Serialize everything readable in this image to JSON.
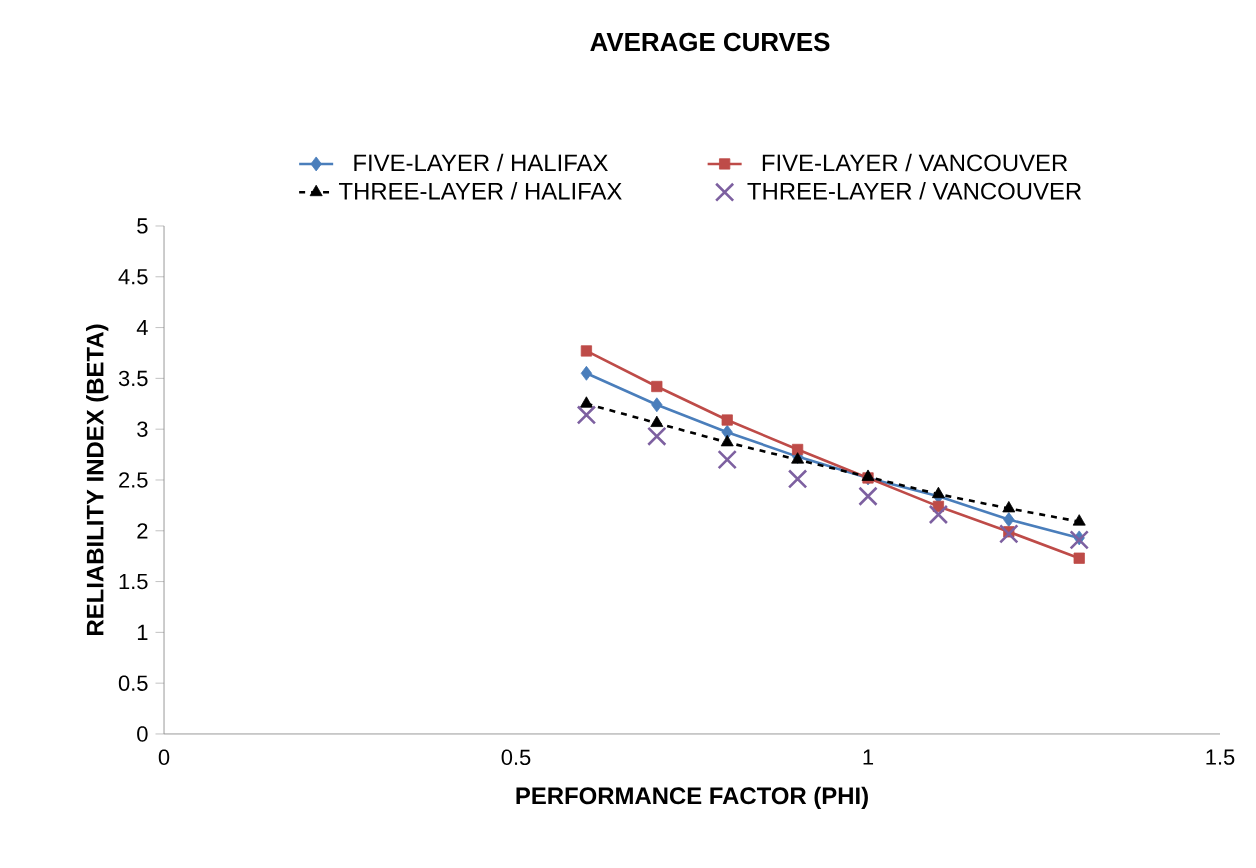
{
  "chart_data": {
    "type": "line",
    "title": "AVERAGE CURVES",
    "xlabel": "PERFORMANCE FACTOR (PHI)",
    "ylabel": "RELIABILITY INDEX (BETA)",
    "x": [
      0.6,
      0.7,
      0.8,
      0.9,
      1.0,
      1.1,
      1.2,
      1.3
    ],
    "series": [
      {
        "name": "FIVE-LAYER / HALIFAX",
        "color": "#4a7ebb",
        "marker": "diamond",
        "line_style": "solid",
        "values": [
          3.55,
          3.24,
          2.97,
          2.73,
          2.52,
          2.34,
          2.11,
          1.93
        ]
      },
      {
        "name": "FIVE-LAYER / VANCOUVER",
        "color": "#be4b48",
        "marker": "square",
        "line_style": "solid",
        "values": [
          3.77,
          3.42,
          3.09,
          2.8,
          2.52,
          2.24,
          1.99,
          1.73
        ]
      },
      {
        "name": "THREE-LAYER / HALIFAX",
        "color": "#000000",
        "marker": "triangle",
        "line_style": "dashed",
        "values": [
          3.25,
          3.06,
          2.87,
          2.7,
          2.53,
          2.36,
          2.22,
          2.09
        ]
      },
      {
        "name": "THREE-LAYER / VANCOUVER",
        "color": "#7d60a0",
        "type": "scatter",
        "marker": "cross",
        "values": [
          3.14,
          2.93,
          2.7,
          2.51,
          2.34,
          2.16,
          1.97,
          1.91
        ]
      }
    ],
    "xlim": [
      0,
      1.5
    ],
    "xticks": [
      0,
      0.5,
      1,
      1.5
    ],
    "ylim": [
      0,
      5
    ],
    "yticks": [
      0,
      0.5,
      1,
      1.5,
      2,
      2.5,
      3,
      3.5,
      4,
      4.5,
      5
    ],
    "grid": false,
    "legend": "top"
  }
}
